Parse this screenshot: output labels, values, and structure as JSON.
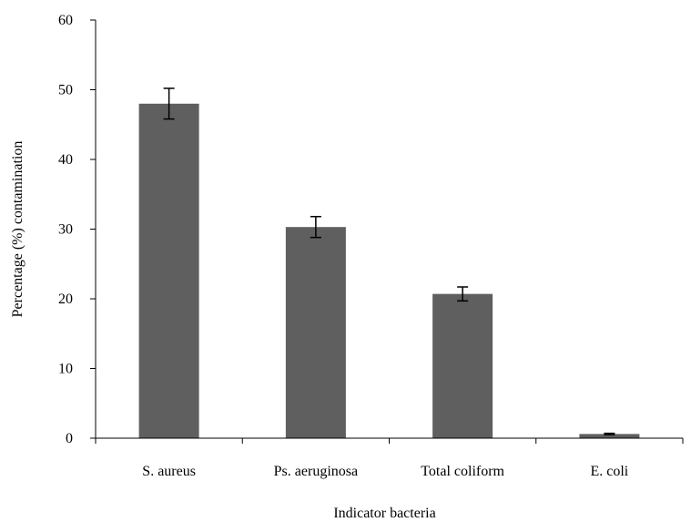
{
  "colors": {
    "bar": "#5f5f5f",
    "axis": "#000000",
    "error_bar": "#000000",
    "background": "#ffffff"
  },
  "chart_data": {
    "type": "bar",
    "title": "",
    "xlabel": "Indicator bacteria",
    "ylabel": "Percentage (%) contamination",
    "categories": [
      "S. aureus",
      "Ps. aeruginosa",
      "Total coliform",
      "E. coli"
    ],
    "values": [
      48,
      30.3,
      20.7,
      0.6
    ],
    "errors": [
      2.2,
      1.5,
      1.0,
      0.1
    ],
    "ylim": [
      0,
      60
    ],
    "yticks": [
      0,
      10,
      20,
      30,
      40,
      50,
      60
    ],
    "grid": false,
    "legend": "none"
  }
}
